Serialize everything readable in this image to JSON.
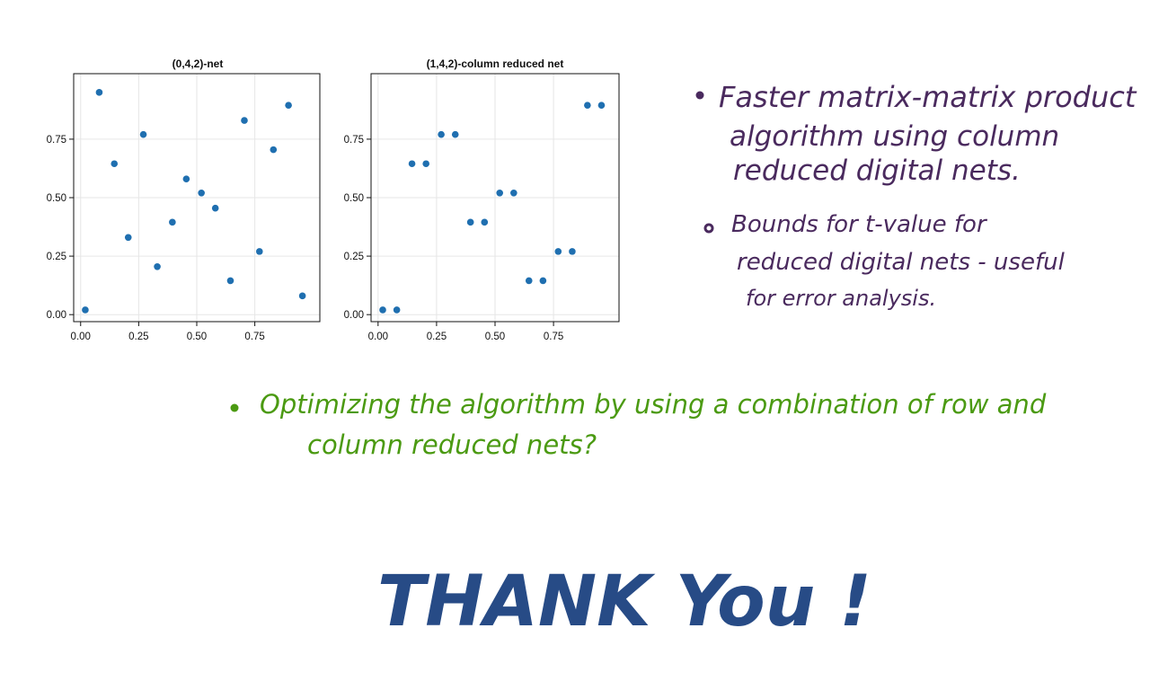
{
  "colors": {
    "point": "#1f6fb0",
    "grid": "#e6e6e6",
    "axis": "#111111",
    "purple_ink": "#4a2a5e",
    "green_ink": "#4b9a12",
    "blue_ink": "#274b86"
  },
  "chart_data": [
    {
      "type": "scatter",
      "title": "(0,4,2)-net",
      "xlim": [
        0,
        1
      ],
      "ylim": [
        0,
        1
      ],
      "xticks": [
        "0.00",
        "0.25",
        "0.50",
        "0.75"
      ],
      "yticks": [
        "0.00",
        "0.25",
        "0.50",
        "0.75"
      ],
      "grid": true,
      "series": [
        {
          "points": [
            {
              "x": 0.02,
              "y": 0.02
            },
            {
              "x": 0.08,
              "y": 0.95
            },
            {
              "x": 0.145,
              "y": 0.645
            },
            {
              "x": 0.205,
              "y": 0.33
            },
            {
              "x": 0.27,
              "y": 0.77
            },
            {
              "x": 0.33,
              "y": 0.205
            },
            {
              "x": 0.395,
              "y": 0.395
            },
            {
              "x": 0.455,
              "y": 0.58
            },
            {
              "x": 0.52,
              "y": 0.52
            },
            {
              "x": 0.58,
              "y": 0.455
            },
            {
              "x": 0.645,
              "y": 0.145
            },
            {
              "x": 0.705,
              "y": 0.83
            },
            {
              "x": 0.77,
              "y": 0.27
            },
            {
              "x": 0.83,
              "y": 0.705
            },
            {
              "x": 0.895,
              "y": 0.895
            },
            {
              "x": 0.955,
              "y": 0.08
            }
          ]
        }
      ]
    },
    {
      "type": "scatter",
      "title": "(1,4,2)-column reduced net",
      "xlim": [
        0,
        1
      ],
      "ylim": [
        0,
        1
      ],
      "xticks": [
        "0.00",
        "0.25",
        "0.50",
        "0.75"
      ],
      "yticks": [
        "0.00",
        "0.25",
        "0.50",
        "0.75"
      ],
      "grid": true,
      "series": [
        {
          "points": [
            {
              "x": 0.02,
              "y": 0.02
            },
            {
              "x": 0.08,
              "y": 0.02
            },
            {
              "x": 0.145,
              "y": 0.645
            },
            {
              "x": 0.205,
              "y": 0.645
            },
            {
              "x": 0.27,
              "y": 0.77
            },
            {
              "x": 0.33,
              "y": 0.77
            },
            {
              "x": 0.395,
              "y": 0.395
            },
            {
              "x": 0.455,
              "y": 0.395
            },
            {
              "x": 0.52,
              "y": 0.52
            },
            {
              "x": 0.58,
              "y": 0.52
            },
            {
              "x": 0.645,
              "y": 0.145
            },
            {
              "x": 0.705,
              "y": 0.145
            },
            {
              "x": 0.77,
              "y": 0.27
            },
            {
              "x": 0.83,
              "y": 0.27
            },
            {
              "x": 0.895,
              "y": 0.895
            },
            {
              "x": 0.955,
              "y": 0.895
            }
          ]
        }
      ]
    }
  ],
  "notes": {
    "bullet1_line1": "Faster matrix-matrix product",
    "bullet1_line2": "algorithm using column",
    "bullet1_line3": "reduced digital nets.",
    "bullet2_line1": "Bounds for t-value for",
    "bullet2_line2": "reduced digital nets - useful",
    "bullet2_line3": "for error analysis.",
    "bullet3_line1": "Optimizing the algorithm by using a combination of row and",
    "bullet3_line2": "column reduced nets?",
    "thanks": "THANK You !"
  }
}
